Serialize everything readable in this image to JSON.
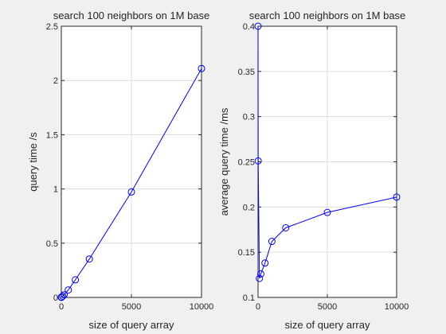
{
  "chart_data": [
    {
      "type": "line",
      "title": "search 100 neighbors on 1M base",
      "xlabel": "size of query array",
      "ylabel": "query time /s",
      "xlim": [
        0,
        10000
      ],
      "ylim": [
        0,
        2.5
      ],
      "xticks": [
        0,
        5000,
        10000
      ],
      "xtick_labels": [
        "0",
        "5000",
        "10000"
      ],
      "yticks": [
        0,
        0.5,
        1,
        1.5,
        2,
        2.5
      ],
      "ytick_labels": [
        "0",
        "0.5",
        "1",
        "1.5",
        "2",
        "2.5"
      ],
      "grid": true,
      "marker": "circle",
      "color": "#0000ff",
      "x": [
        1,
        10,
        100,
        200,
        500,
        1000,
        2000,
        5000,
        10000
      ],
      "y": [
        0.0004,
        0.0025,
        0.012,
        0.025,
        0.069,
        0.162,
        0.354,
        0.972,
        2.11
      ]
    },
    {
      "type": "line",
      "title": "search 100 neighbors on 1M base",
      "xlabel": "size of query array",
      "ylabel": "average query time /ms",
      "xlim": [
        0,
        10000
      ],
      "ylim": [
        0.1,
        0.4
      ],
      "xticks": [
        0,
        5000,
        10000
      ],
      "xtick_labels": [
        "0",
        "5000",
        "10000"
      ],
      "yticks": [
        0.1,
        0.15,
        0.2,
        0.25,
        0.3,
        0.35,
        0.4
      ],
      "ytick_labels": [
        "0.1",
        "0.15",
        "0.2",
        "0.25",
        "0.3",
        "0.35",
        "0.4"
      ],
      "grid": true,
      "marker": "circle",
      "color": "#0000ff",
      "x": [
        1,
        10,
        100,
        200,
        500,
        1000,
        2000,
        5000,
        10000
      ],
      "y": [
        0.4,
        0.251,
        0.121,
        0.126,
        0.138,
        0.162,
        0.177,
        0.194,
        0.211
      ]
    }
  ]
}
